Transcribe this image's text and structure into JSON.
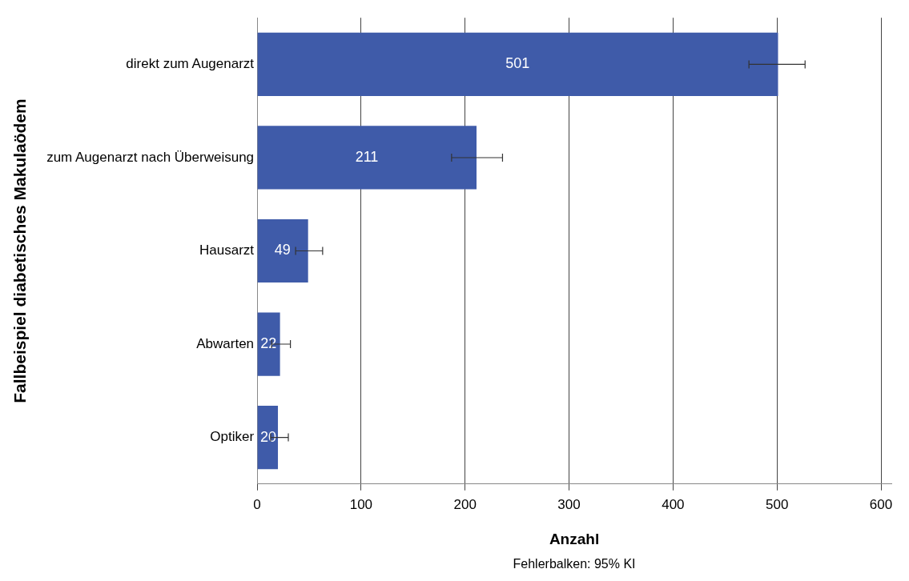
{
  "chart_data": {
    "type": "bar",
    "orientation": "horizontal",
    "xlabel": "Anzahl",
    "ylabel": "Fallbeispiel diabetisches Makulaödem",
    "categories": [
      "direkt zum Augenarzt",
      "zum Augenarzt nach Überweisung",
      "Hausarzt",
      "Abwarten",
      "Optiker"
    ],
    "values": [
      501,
      211,
      49,
      22,
      20
    ],
    "errors": [
      [
        473,
        527
      ],
      [
        187,
        236
      ],
      [
        37,
        63
      ],
      [
        14,
        32
      ],
      [
        13,
        30
      ]
    ],
    "color": "#3f5ba9",
    "data_labels": true,
    "xlim": [
      0,
      610
    ],
    "xticks": [
      0,
      100,
      200,
      300,
      400,
      500,
      600
    ],
    "grid": "x",
    "annotations": [
      "Fehlerbalken: 95% KI"
    ]
  }
}
